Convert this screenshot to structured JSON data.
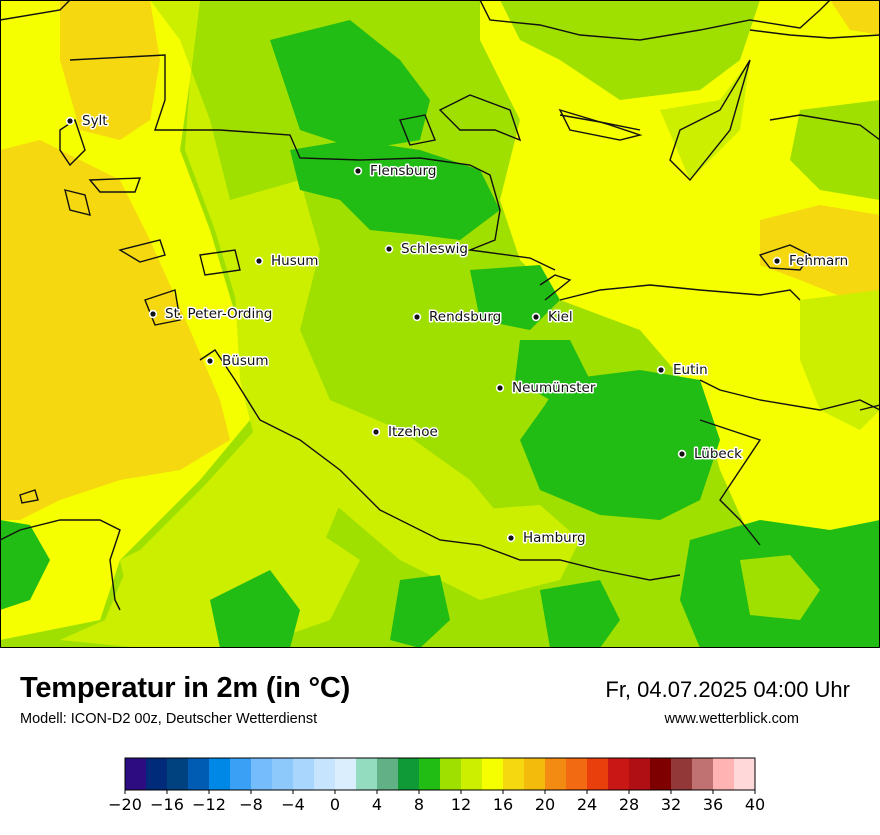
{
  "title": "Temperatur in 2m (in °C)",
  "subtitle": "Modell: ICON-D2 00z, Deutscher Wetterdienst",
  "datetime": "Fr, 04.07.2025 04:00 Uhr",
  "website": "www.wetterblick.com",
  "colors": {
    "t12_14": "#9fe000",
    "t14_16": "#ccef00",
    "t16_18": "#f5ff00",
    "t18_20": "#f5d80f",
    "t10_12": "#21bd14",
    "coast": "#111111",
    "water_zero": "#ffffff"
  },
  "cities": [
    {
      "name": "Sylt"
    },
    {
      "name": "Flensburg"
    },
    {
      "name": "Schleswig"
    },
    {
      "name": "Husum"
    },
    {
      "name": "Fehmarn"
    },
    {
      "name": "St. Peter-Ording"
    },
    {
      "name": "Rendsburg"
    },
    {
      "name": "Kiel"
    },
    {
      "name": "Büsum"
    },
    {
      "name": "Eutin"
    },
    {
      "name": "Neumünster"
    },
    {
      "name": "Itzehoe"
    },
    {
      "name": "Lübeck"
    },
    {
      "name": "Hamburg"
    }
  ],
  "legend": {
    "unit": "°C",
    "colors": [
      "#2d0b80",
      "#002a7a",
      "#00427f",
      "#005cb3",
      "#0088e6",
      "#3aa0f5",
      "#74bcfb",
      "#8ec9fc",
      "#a8d6fd",
      "#c6e4fe",
      "#dbeefe",
      "#93dcbf",
      "#62b085",
      "#109a37",
      "#21bd14",
      "#9fe000",
      "#ccef00",
      "#f5ff00",
      "#f5d80f",
      "#f3bb0c",
      "#f38a11",
      "#f26a12",
      "#e93f0c",
      "#c91715",
      "#b00f14",
      "#7e0000",
      "#923838",
      "#c07272",
      "#ffb3b3",
      "#ffd9d9"
    ],
    "tick_labels": [
      "−20",
      "−16",
      "−12",
      "−8",
      "−4",
      "0",
      "4",
      "8",
      "12",
      "16",
      "20",
      "24",
      "28",
      "32",
      "36",
      "40"
    ],
    "min": -20,
    "max": 40
  }
}
